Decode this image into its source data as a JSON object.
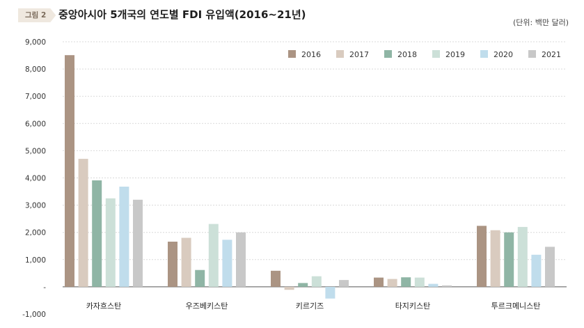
{
  "figure": {
    "tag": "그림 2",
    "title": "중앙아시아 5개국의 연도별 FDI 유입액(2016~21년)",
    "unit": "(단위: 백만 달러)"
  },
  "colors": {
    "2016": "#ab9483",
    "2017": "#d9cbbf",
    "2018": "#8fb5a5",
    "2019": "#cce0d8",
    "2020": "#c0ddec",
    "2021": "#c8c8c8",
    "grid": "#d9d9d9",
    "axis": "#555555"
  },
  "chart_data": {
    "type": "bar",
    "categories": [
      "카자흐스탄",
      "우즈베키스탄",
      "키르기즈",
      "타지키스탄",
      "투르크메니스탄"
    ],
    "series": [
      {
        "name": "2016",
        "values": [
          8510,
          1660,
          590,
          340,
          2240
        ]
      },
      {
        "name": "2017",
        "values": [
          4700,
          1800,
          -110,
          290,
          2080
        ]
      },
      {
        "name": "2018",
        "values": [
          3910,
          620,
          140,
          350,
          2000
        ]
      },
      {
        "name": "2019",
        "values": [
          3250,
          2310,
          390,
          340,
          2200
        ]
      },
      {
        "name": "2020",
        "values": [
          3680,
          1730,
          -430,
          110,
          1180
        ]
      },
      {
        "name": "2021",
        "values": [
          3200,
          2000,
          250,
          50,
          1470
        ]
      }
    ],
    "yticks": [
      -1000,
      0,
      1000,
      2000,
      3000,
      4000,
      5000,
      6000,
      7000,
      8000,
      9000
    ],
    "ytick_labels": [
      "-1,000",
      "-",
      "1,000",
      "2,000",
      "3,000",
      "4,000",
      "5,000",
      "6,000",
      "7,000",
      "8,000",
      "9,000"
    ],
    "ylim": [
      -1000,
      9000
    ],
    "grid": true,
    "legend_position": "top-right"
  }
}
